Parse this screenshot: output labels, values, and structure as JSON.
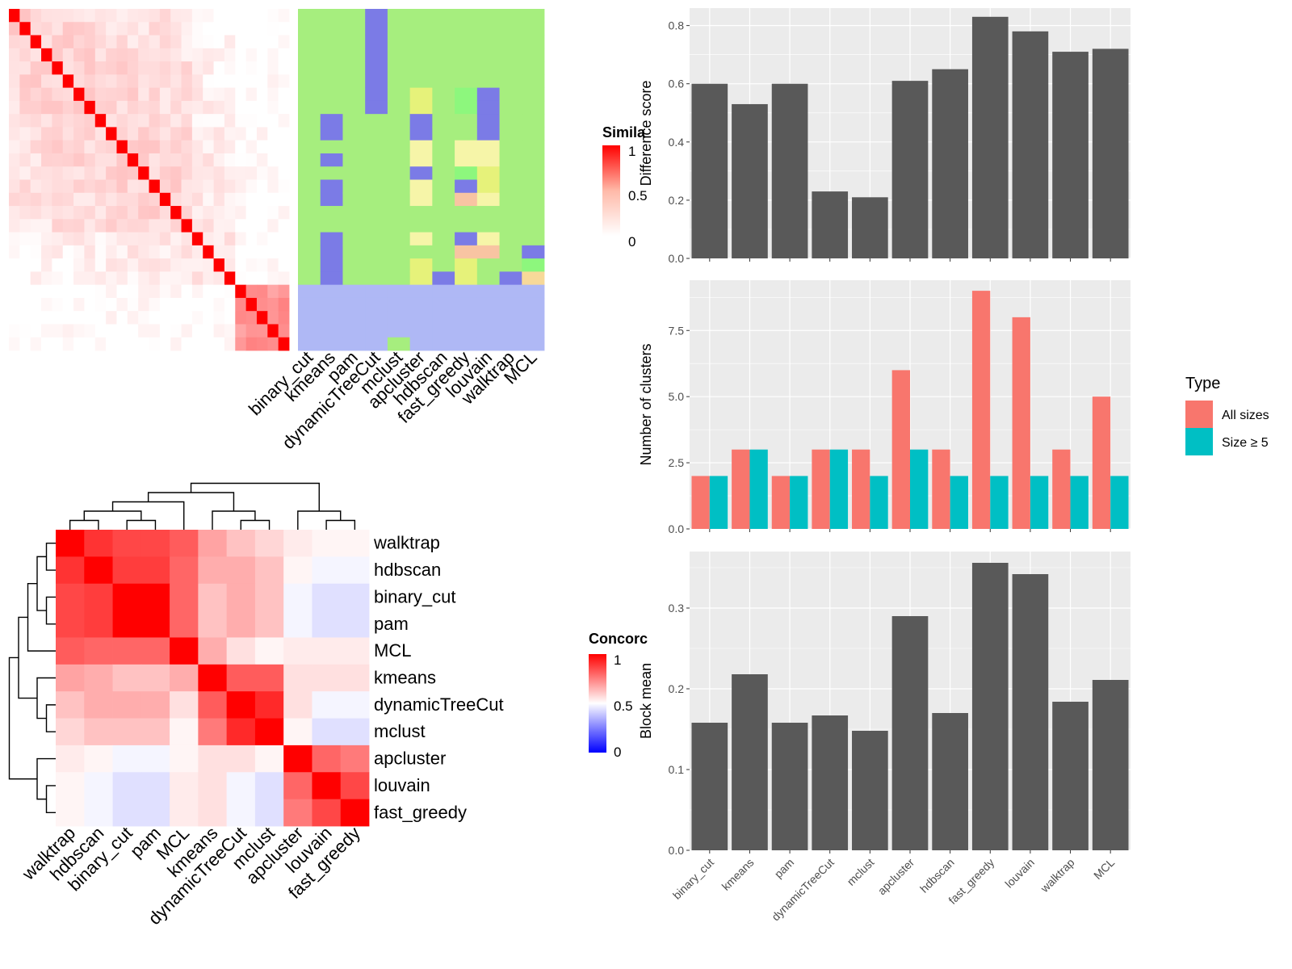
{
  "colors": {
    "panel_bg": "#ebebeb",
    "grid": "#ffffff",
    "bar_fill": "#595959",
    "all_sizes": "#f8766d",
    "size5": "#00bfc4",
    "dendrogram": "#000000"
  },
  "chart_data": [
    {
      "id": "similarity_heatmap",
      "type": "heatmap",
      "n": 26,
      "colorscale": "white-to-red",
      "legend": {
        "title": "Simila",
        "ticks": [
          "1",
          "0.5",
          "0"
        ],
        "placement": "right"
      },
      "cluster_annotation": {
        "methods": [
          "binary_cut",
          "kmeans",
          "pam",
          "dynamicTreeCut",
          "mclust",
          "apcluster",
          "hdbscan",
          "fast_greedy",
          "louvain",
          "walktrap",
          "MCL"
        ],
        "palette": [
          "#a6ee7e",
          "#7b7be6",
          "#afb8f5",
          "#e6f27a",
          "#f6f5a8",
          "#f8c4a2",
          "#8df77d",
          "#f7d999"
        ]
      }
    },
    {
      "id": "concordance_heatmap",
      "type": "heatmap",
      "legend": {
        "title": "Concorc",
        "ticks": [
          "1",
          "0.5",
          "0"
        ],
        "placement": "right"
      },
      "row_labels": [
        "walktrap",
        "hdbscan",
        "binary_cut",
        "pam",
        "MCL",
        "kmeans",
        "dynamicTreeCut",
        "mclust",
        "apcluster",
        "louvain",
        "fast_greedy"
      ],
      "col_labels": [
        "walktrap",
        "hdbscan",
        "binary_cut",
        "pam",
        "MCL",
        "kmeans",
        "dynamicTreeCut",
        "mclust",
        "apcluster",
        "louvain",
        "fast_greedy"
      ],
      "values": [
        [
          1.0,
          0.9,
          0.86,
          0.86,
          0.82,
          0.68,
          0.62,
          0.58,
          0.54,
          0.52,
          0.52
        ],
        [
          0.9,
          1.0,
          0.88,
          0.88,
          0.8,
          0.66,
          0.66,
          0.62,
          0.52,
          0.48,
          0.48
        ],
        [
          0.86,
          0.88,
          1.0,
          1.0,
          0.8,
          0.62,
          0.66,
          0.62,
          0.48,
          0.44,
          0.44
        ],
        [
          0.86,
          0.88,
          1.0,
          1.0,
          0.8,
          0.62,
          0.66,
          0.62,
          0.48,
          0.44,
          0.44
        ],
        [
          0.82,
          0.8,
          0.8,
          0.8,
          1.0,
          0.66,
          0.56,
          0.52,
          0.54,
          0.54,
          0.54
        ],
        [
          0.68,
          0.66,
          0.62,
          0.62,
          0.66,
          1.0,
          0.82,
          0.82,
          0.56,
          0.56,
          0.56
        ],
        [
          0.62,
          0.66,
          0.66,
          0.66,
          0.56,
          0.82,
          1.0,
          0.92,
          0.56,
          0.48,
          0.48
        ],
        [
          0.58,
          0.62,
          0.62,
          0.62,
          0.52,
          0.76,
          0.92,
          1.0,
          0.52,
          0.44,
          0.44
        ],
        [
          0.54,
          0.52,
          0.48,
          0.48,
          0.52,
          0.56,
          0.56,
          0.52,
          1.0,
          0.8,
          0.76
        ],
        [
          0.52,
          0.48,
          0.44,
          0.44,
          0.54,
          0.56,
          0.48,
          0.44,
          0.8,
          1.0,
          0.86
        ],
        [
          0.52,
          0.48,
          0.44,
          0.44,
          0.54,
          0.56,
          0.48,
          0.44,
          0.76,
          0.86,
          1.0
        ]
      ]
    },
    {
      "id": "difference_score",
      "type": "bar",
      "ylabel": "Difference score",
      "ylim": [
        0,
        0.86
      ],
      "yticks": [
        0.0,
        0.2,
        0.4,
        0.6,
        0.8
      ],
      "ytick_labels": [
        "0.0",
        "0.2",
        "0.4",
        "0.6",
        "0.8"
      ],
      "categories": [
        "binary_cut",
        "kmeans",
        "pam",
        "dynamicTreeCut",
        "mclust",
        "apcluster",
        "hdbscan",
        "fast_greedy",
        "louvain",
        "walktrap",
        "MCL"
      ],
      "values": [
        0.6,
        0.53,
        0.6,
        0.23,
        0.21,
        0.61,
        0.65,
        0.83,
        0.78,
        0.71,
        0.72
      ]
    },
    {
      "id": "number_of_clusters",
      "type": "bar",
      "ylabel": "Number of clusters",
      "ylim": [
        0,
        9.4
      ],
      "yticks": [
        0.0,
        2.5,
        5.0,
        7.5
      ],
      "ytick_labels": [
        "0.0",
        "2.5",
        "5.0",
        "7.5"
      ],
      "categories": [
        "binary_cut",
        "kmeans",
        "pam",
        "dynamicTreeCut",
        "mclust",
        "apcluster",
        "hdbscan",
        "fast_greedy",
        "louvain",
        "walktrap",
        "MCL"
      ],
      "legend_title": "Type",
      "series": [
        {
          "name": "All sizes",
          "values": [
            2,
            3,
            2,
            3,
            3,
            6,
            3,
            9,
            8,
            3,
            5
          ]
        },
        {
          "name": "Size ≥ 5",
          "values": [
            2,
            3,
            2,
            3,
            2,
            3,
            2,
            2,
            2,
            2,
            2
          ]
        }
      ]
    },
    {
      "id": "block_mean",
      "type": "bar",
      "ylabel": "Block mean",
      "ylim": [
        0,
        0.37
      ],
      "yticks": [
        0.0,
        0.1,
        0.2,
        0.3
      ],
      "ytick_labels": [
        "0.0",
        "0.1",
        "0.2",
        "0.3"
      ],
      "categories": [
        "binary_cut",
        "kmeans",
        "pam",
        "dynamicTreeCut",
        "mclust",
        "apcluster",
        "hdbscan",
        "fast_greedy",
        "louvain",
        "walktrap",
        "MCL"
      ],
      "values": [
        0.158,
        0.218,
        0.158,
        0.167,
        0.148,
        0.29,
        0.17,
        0.356,
        0.342,
        0.184,
        0.211
      ]
    }
  ]
}
